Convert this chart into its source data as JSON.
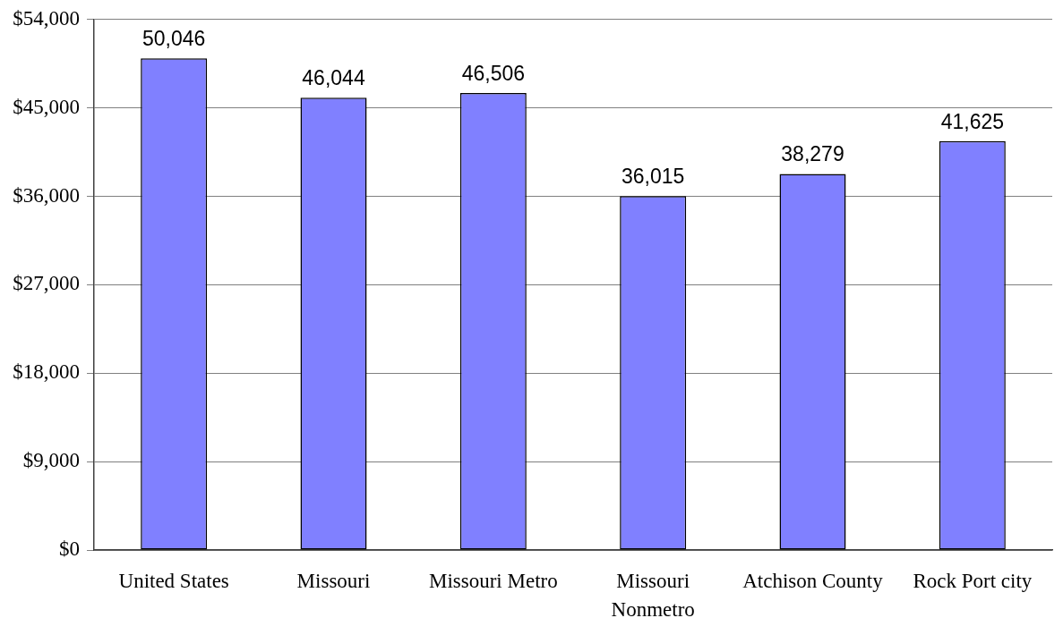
{
  "chart_data": {
    "type": "bar",
    "categories": [
      "United States",
      "Missouri",
      "Missouri Metro",
      "Missouri Nonmetro",
      "Atchison County",
      "Rock Port city"
    ],
    "values": [
      50046,
      46044,
      46506,
      36015,
      38279,
      41625
    ],
    "value_labels": [
      "50,046",
      "46,044",
      "46,506",
      "36,015",
      "38,279",
      "41,625"
    ],
    "color": "#8080ff",
    "ylim": [
      0,
      54000
    ],
    "yticks": [
      {
        "value": 0,
        "label": "$0"
      },
      {
        "value": 9000,
        "label": "$9,000"
      },
      {
        "value": 18000,
        "label": "$18,000"
      },
      {
        "value": 27000,
        "label": "$27,000"
      },
      {
        "value": 36000,
        "label": "$36,000"
      },
      {
        "value": 45000,
        "label": "$45,000"
      },
      {
        "value": 54000,
        "label": "$54,000"
      }
    ],
    "grid": "y"
  }
}
